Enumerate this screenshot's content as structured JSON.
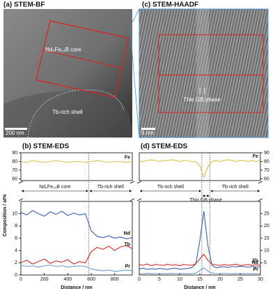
{
  "images": [
    {
      "title": "(a) STEM-BF",
      "labels": [
        "Nd₂Fe₁₄B core",
        "Tb-rich shell"
      ],
      "scale_bar": "200 nm"
    },
    {
      "title": "(c) STEM-HAADF",
      "labels": [
        "Thin GB phase"
      ],
      "scale_bar": "5 nm"
    }
  ],
  "chart_data": [
    {
      "type": "line",
      "title": "(b) STEM-EDS",
      "xlabel": "Distance / nm",
      "ylabel": "Composition / at%",
      "x": [
        0,
        50,
        100,
        150,
        200,
        250,
        300,
        350,
        400,
        450,
        500,
        550,
        600,
        650,
        700,
        750,
        800,
        850,
        900,
        950
      ],
      "xlim": [
        0,
        950
      ],
      "xticks": [
        0,
        200,
        400,
        600,
        800
      ],
      "ylim": [
        0,
        12
      ],
      "yticks": [
        0,
        2,
        4,
        6,
        8,
        10
      ],
      "y2lim": [
        58,
        90
      ],
      "y2ticks": [
        60,
        70,
        80,
        90
      ],
      "tick_side": "left",
      "series": [
        {
          "name": "Fe",
          "color": "#d4c24a",
          "axis": "y2",
          "values": [
            80,
            79,
            81,
            80,
            79,
            80,
            81,
            80,
            79,
            80,
            80,
            79,
            80,
            81,
            80,
            79,
            80,
            80,
            79,
            80
          ]
        },
        {
          "name": "Nd",
          "color": "#3a5fb0",
          "values": [
            10.2,
            9.8,
            10.5,
            10.0,
            9.6,
            10.3,
            9.9,
            10.4,
            9.7,
            10.1,
            9.8,
            10.0,
            7.2,
            6.3,
            6.1,
            6.4,
            6.0,
            6.2,
            5.9,
            6.1
          ]
        },
        {
          "name": "Tb",
          "color": "#d42a2a",
          "values": [
            2.0,
            2.4,
            1.8,
            2.2,
            2.6,
            1.9,
            2.3,
            2.1,
            2.5,
            1.8,
            2.2,
            2.0,
            3.8,
            4.5,
            4.2,
            4.7,
            4.0,
            4.6,
            4.8,
            4.3
          ]
        },
        {
          "name": "Pr",
          "color": "#6a9bd0",
          "values": [
            1.6,
            1.4,
            1.5,
            1.3,
            1.5,
            1.6,
            1.4,
            1.5,
            1.3,
            1.4,
            1.5,
            1.4,
            1.0,
            0.8,
            0.7,
            0.8,
            0.6,
            0.7,
            0.8,
            0.7
          ]
        }
      ],
      "regions": [
        {
          "label": "Nd₂Fe₁₄B core",
          "from": 0,
          "to": 580
        },
        {
          "label": "Tb-rich shell",
          "from": 580,
          "to": 950
        }
      ],
      "boundaries": [
        580
      ]
    },
    {
      "type": "line",
      "title": "(d) STEM-EDS",
      "xlabel": "Distance / nm",
      "x": [
        0,
        1,
        2,
        3,
        4,
        5,
        6,
        7,
        8,
        9,
        10,
        11,
        12,
        13,
        14,
        15,
        16,
        17,
        18,
        19,
        20,
        21,
        22,
        23,
        24,
        25,
        26,
        27,
        28,
        29,
        30
      ],
      "xlim": [
        0,
        30
      ],
      "xticks": [
        0,
        5,
        10,
        15,
        20,
        25,
        30
      ],
      "ylim": [
        0,
        30
      ],
      "yticks": [
        5,
        10,
        15,
        20,
        25
      ],
      "y2lim": [
        58,
        90
      ],
      "y2ticks": [
        60,
        70,
        80,
        90
      ],
      "tick_side": "right",
      "series": [
        {
          "name": "Fe",
          "color": "#d4c24a",
          "axis": "y2",
          "values": [
            81,
            80,
            81,
            82,
            81,
            80,
            81,
            81,
            82,
            81,
            80,
            81,
            81,
            80,
            80,
            75,
            62,
            74,
            80,
            81,
            80,
            81,
            82,
            81,
            80,
            81,
            81,
            80,
            81,
            80,
            81
          ]
        },
        {
          "name": "Nd",
          "color": "#3a5fb0",
          "values": [
            2.5,
            2.8,
            2.3,
            2.6,
            2.4,
            2.7,
            2.5,
            2.3,
            2.6,
            2.8,
            2.4,
            2.5,
            2.7,
            3.0,
            4.5,
            14,
            26,
            12,
            4.0,
            3.0,
            3.2,
            3.4,
            3.1,
            3.5,
            3.3,
            3.6,
            3.4,
            3.2,
            3.5,
            3.3,
            3.4
          ]
        },
        {
          "name": "Tb",
          "color": "#d42a2a",
          "values": [
            4.2,
            4.0,
            4.5,
            3.8,
            4.3,
            4.1,
            3.9,
            4.4,
            4.0,
            4.2,
            3.8,
            4.3,
            4.1,
            4.0,
            4.6,
            6.5,
            8.5,
            6.0,
            4.5,
            4.1,
            3.9,
            4.3,
            4.0,
            4.2,
            4.4,
            3.8,
            4.1,
            4.3,
            3.9,
            4.2,
            4.0
          ]
        },
        {
          "name": "Pr",
          "color": "#6a9bd0",
          "values": [
            0.6,
            0.5,
            0.7,
            0.5,
            0.6,
            0.4,
            0.6,
            0.5,
            0.7,
            0.6,
            0.5,
            0.6,
            0.5,
            0.6,
            0.8,
            1.8,
            3.0,
            1.6,
            0.8,
            0.6,
            0.5,
            0.7,
            0.6,
            0.5,
            0.6,
            0.7,
            0.5,
            0.6,
            0.5,
            0.6,
            0.5
          ]
        }
      ],
      "regions": [
        {
          "label": "Tb-rich shell",
          "from": 0,
          "to": 15.5
        },
        {
          "label": "Tb-rich shell",
          "from": 17.5,
          "to": 30
        }
      ],
      "annotation": {
        "label": "Thin GB phase",
        "from": 15.5,
        "to": 17.5
      },
      "boundaries": [
        15.5,
        17.5
      ]
    }
  ]
}
